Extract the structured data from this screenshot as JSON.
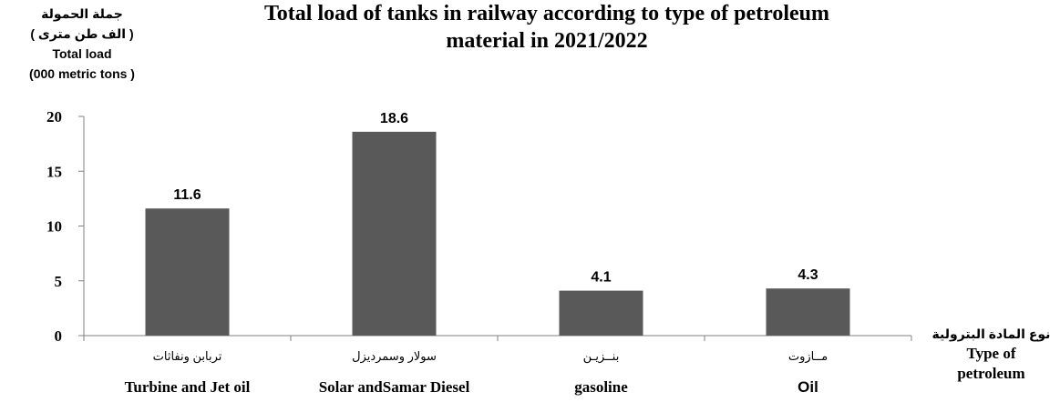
{
  "chart_data": {
    "type": "bar",
    "title": "Total load of tanks in railway according to type of petroleum material in 2021/2022",
    "title_lines": [
      "Total load of tanks in railway according to type of petroleum",
      "material in 2021/2022"
    ],
    "ylabel_lines": [
      "جملة الحمولة",
      "( الف طن مترى )",
      "Total load",
      "(000 metric tons )"
    ],
    "xlabel_lines": [
      "نوع المادة البترولية",
      "Type of",
      "petroleum"
    ],
    "categories": [
      {
        "ar": "تربابن ونفاثات",
        "en": "Turbine and Jet oil"
      },
      {
        "ar": "سولار وسمرديزل",
        "en": "Solar andSamar Diesel"
      },
      {
        "ar": "بنــزيـن",
        "en": "gasoline"
      },
      {
        "ar": "مــازوت",
        "en": "Oil"
      }
    ],
    "values": [
      11.6,
      18.6,
      4.1,
      4.3
    ],
    "value_labels": [
      "11.6",
      "18.6",
      "4.1",
      "4.3"
    ],
    "ylim": [
      0,
      20
    ],
    "yticks": [
      "0",
      "5",
      "10",
      "15",
      "20"
    ],
    "grid": false,
    "bar_color": "#595959"
  }
}
